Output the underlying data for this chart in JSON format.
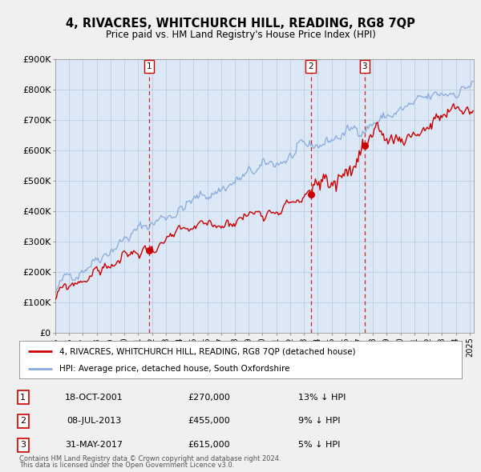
{
  "title": "4, RIVACRES, WHITCHURCH HILL, READING, RG8 7QP",
  "subtitle": "Price paid vs. HM Land Registry's House Price Index (HPI)",
  "legend_label_red": "4, RIVACRES, WHITCHURCH HILL, READING, RG8 7QP (detached house)",
  "legend_label_blue": "HPI: Average price, detached house, South Oxfordshire",
  "footer_line1": "Contains HM Land Registry data © Crown copyright and database right 2024.",
  "footer_line2": "This data is licensed under the Open Government Licence v3.0.",
  "transactions": [
    {
      "num": 1,
      "date": "18-OCT-2001",
      "price": 270000,
      "pct": "13%",
      "x_year": 2001.8
    },
    {
      "num": 2,
      "date": "08-JUL-2013",
      "price": 455000,
      "pct": "9%",
      "x_year": 2013.5
    },
    {
      "num": 3,
      "date": "31-MAY-2017",
      "price": 615000,
      "pct": "5%",
      "x_year": 2017.4
    }
  ],
  "red_color": "#cc0000",
  "blue_color": "#88aadd",
  "dashed_line_color": "#cc0000",
  "background_color": "#f0f0f0",
  "plot_bg_color": "#dce8f5",
  "grid_color": "#b8cfe0",
  "ylim": [
    0,
    900000
  ],
  "xlim_start": 1995.0,
  "xlim_end": 2025.3,
  "yticks": [
    0,
    100000,
    200000,
    300000,
    400000,
    500000,
    600000,
    700000,
    800000,
    900000
  ],
  "ytick_labels": [
    "£0",
    "£100K",
    "£200K",
    "£300K",
    "£400K",
    "£500K",
    "£600K",
    "£700K",
    "£800K",
    "£900K"
  ],
  "xticks": [
    1995,
    1996,
    1997,
    1998,
    1999,
    2000,
    2001,
    2002,
    2003,
    2004,
    2005,
    2006,
    2007,
    2008,
    2009,
    2010,
    2011,
    2012,
    2013,
    2014,
    2015,
    2016,
    2017,
    2018,
    2019,
    2020,
    2021,
    2022,
    2023,
    2024,
    2025
  ]
}
